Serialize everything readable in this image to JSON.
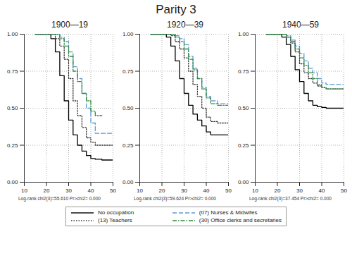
{
  "title": "Parity 3",
  "chart_data": [
    {
      "type": "line",
      "title": "1900—19",
      "caption": "Log-rank chi2(3)=55.610    Pr>chi2= 0.000",
      "x": [
        15,
        20,
        22,
        24,
        26,
        28,
        30,
        32,
        34,
        36,
        38,
        40,
        42,
        45,
        50
      ],
      "series": [
        {
          "name": "No occupation",
          "color": "#000000",
          "line_style": "solid",
          "values": [
            1,
            1,
            0.97,
            0.88,
            0.72,
            0.55,
            0.42,
            0.32,
            0.25,
            0.21,
            0.18,
            0.16,
            0.155,
            0.15,
            0.15
          ]
        },
        {
          "name": "(07) Nurses & Midwifes",
          "color": "#5b9bd5",
          "line_style": "dashed",
          "values": [
            1,
            1,
            1,
            1,
            0.98,
            0.95,
            0.88,
            0.78,
            0.7,
            0.6,
            0.5,
            0.4,
            0.33,
            0.33,
            0.33
          ]
        },
        {
          "name": "(13) Teachers",
          "color": "#333333",
          "line_style": "dotted",
          "values": [
            1,
            1,
            1,
            0.97,
            0.92,
            0.83,
            0.7,
            0.55,
            0.45,
            0.37,
            0.3,
            0.27,
            0.25,
            0.25,
            0.25
          ]
        },
        {
          "name": "(30) Office clerks and secretaries",
          "color": "#2e8b3e",
          "line_style": "dashdot",
          "values": [
            1,
            1,
            1,
            1,
            0.97,
            0.92,
            0.85,
            0.75,
            0.68,
            0.6,
            0.55,
            0.48,
            0.45,
            0.45,
            null
          ]
        }
      ],
      "xlim": [
        10,
        50
      ],
      "xticks": [
        10,
        20,
        30,
        40,
        50
      ],
      "ylim": [
        0,
        1
      ],
      "yticks": [
        {
          "value": 0,
          "label": "0.00"
        },
        {
          "value": 0.25,
          "label": "0.25"
        },
        {
          "value": 0.5,
          "label": "0.50"
        },
        {
          "value": 0.75,
          "label": "0.75"
        },
        {
          "value": 1,
          "label": "1.00"
        }
      ],
      "grid": true,
      "legend": "bottom"
    },
    {
      "type": "line",
      "title": "1920—39",
      "caption": "Log-rank chi2(3)=59.624    Pr>chi2= 0.000",
      "x": [
        15,
        20,
        22,
        24,
        26,
        28,
        30,
        32,
        34,
        36,
        38,
        40,
        42,
        45,
        50
      ],
      "series": [
        {
          "name": "No occupation",
          "color": "#000000",
          "line_style": "solid",
          "values": [
            1,
            1,
            0.98,
            0.92,
            0.82,
            0.7,
            0.6,
            0.52,
            0.46,
            0.42,
            0.38,
            0.34,
            0.32,
            0.32,
            0.32
          ]
        },
        {
          "name": "(07) Nurses & Midwifes",
          "color": "#5b9bd5",
          "line_style": "dashed",
          "values": [
            1,
            1,
            1,
            1,
            0.99,
            0.97,
            0.93,
            0.85,
            0.77,
            0.7,
            0.64,
            0.58,
            0.55,
            0.53,
            0.53
          ]
        },
        {
          "name": "(13) Teachers",
          "color": "#333333",
          "line_style": "dotted",
          "values": [
            1,
            1,
            1,
            0.99,
            0.95,
            0.9,
            0.84,
            0.75,
            0.66,
            0.58,
            0.5,
            0.44,
            0.41,
            0.4,
            0.4
          ]
        },
        {
          "name": "(30) Office clerks and secretaries",
          "color": "#2e8b3e",
          "line_style": "dashdot",
          "values": [
            1,
            1,
            1,
            1,
            0.98,
            0.95,
            0.9,
            0.83,
            0.76,
            0.7,
            0.63,
            0.57,
            0.53,
            0.52,
            0.52
          ]
        }
      ],
      "xlim": [
        10,
        50
      ],
      "xticks": [
        10,
        20,
        30,
        40,
        50
      ],
      "ylim": [
        0,
        1
      ],
      "yticks": [
        {
          "value": 0,
          "label": "0.00"
        },
        {
          "value": 0.25,
          "label": "0.25"
        },
        {
          "value": 0.5,
          "label": "0.50"
        },
        {
          "value": 0.75,
          "label": "0.75"
        },
        {
          "value": 1,
          "label": "1.00"
        }
      ],
      "grid": true,
      "legend": "bottom"
    },
    {
      "type": "line",
      "title": "1940—59",
      "caption": "Log-rank chi2(3)=37.454    Pr>chi2= 0.000",
      "x": [
        15,
        20,
        22,
        24,
        26,
        28,
        30,
        32,
        34,
        36,
        38,
        40,
        42,
        45,
        50
      ],
      "series": [
        {
          "name": "No occupation",
          "color": "#000000",
          "line_style": "solid",
          "values": [
            1,
            1,
            0.98,
            0.93,
            0.85,
            0.76,
            0.68,
            0.6,
            0.55,
            0.52,
            0.51,
            0.505,
            0.5,
            0.5,
            0.5
          ]
        },
        {
          "name": "(07) Nurses & Midwifes",
          "color": "#5b9bd5",
          "line_style": "dashed",
          "values": [
            1,
            1,
            1,
            0.99,
            0.96,
            0.92,
            0.87,
            0.82,
            0.77,
            0.74,
            0.7,
            0.67,
            0.66,
            0.66,
            0.66
          ]
        },
        {
          "name": "(13) Teachers",
          "color": "#333333",
          "line_style": "dotted",
          "values": [
            1,
            1,
            1,
            0.98,
            0.94,
            0.88,
            0.8,
            0.74,
            0.7,
            0.67,
            0.65,
            0.64,
            0.63,
            0.63,
            0.63
          ]
        },
        {
          "name": "(30) Office clerks and secretaries",
          "color": "#2e8b3e",
          "line_style": "dashdot",
          "values": [
            1,
            1,
            1,
            0.98,
            0.95,
            0.9,
            0.84,
            0.79,
            0.74,
            0.7,
            0.66,
            0.64,
            0.63,
            0.63,
            0.63
          ]
        }
      ],
      "xlim": [
        10,
        50
      ],
      "xticks": [
        10,
        20,
        30,
        40,
        50
      ],
      "ylim": [
        0,
        1
      ],
      "yticks": [
        {
          "value": 0,
          "label": "0.00"
        },
        {
          "value": 0.25,
          "label": "0.25"
        },
        {
          "value": 0.5,
          "label": "0.50"
        },
        {
          "value": 0.75,
          "label": "0.75"
        },
        {
          "value": 1,
          "label": "1.00"
        }
      ],
      "grid": true,
      "legend": "bottom"
    }
  ]
}
